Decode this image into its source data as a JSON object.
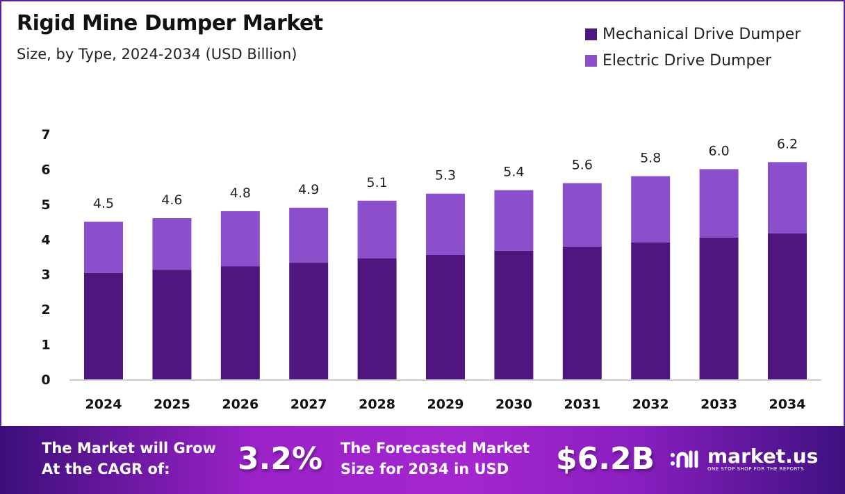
{
  "header": {
    "title": "Rigid Mine Dumper Market",
    "subtitle": "Size, by Type, 2024-2034 (USD Billion)"
  },
  "chart_data": {
    "type": "bar",
    "stacked": true,
    "categories": [
      "2024",
      "2025",
      "2026",
      "2027",
      "2028",
      "2029",
      "2030",
      "2031",
      "2032",
      "2033",
      "2034"
    ],
    "series": [
      {
        "name": "Mechanical Drive Dumper",
        "color": "#4f1680",
        "values": [
          3.04,
          3.13,
          3.23,
          3.33,
          3.45,
          3.55,
          3.67,
          3.79,
          3.91,
          4.05,
          4.17
        ]
      },
      {
        "name": "Electric Drive Dumper",
        "color": "#8b4fcc",
        "values": [
          1.46,
          1.47,
          1.57,
          1.57,
          1.65,
          1.75,
          1.73,
          1.81,
          1.89,
          1.95,
          2.03
        ]
      }
    ],
    "totals": [
      "4.5",
      "4.6",
      "4.8",
      "4.9",
      "5.1",
      "5.3",
      "5.4",
      "5.6",
      "5.8",
      "6.0",
      "6.2"
    ],
    "yticks": [
      "0",
      "1",
      "2",
      "3",
      "4",
      "5",
      "6",
      "7"
    ],
    "ylim": [
      0,
      7
    ],
    "grid": false,
    "legend_position": "top-right"
  },
  "footer": {
    "cagr_label_1": "The Market will Grow",
    "cagr_label_2": "At the CAGR of:",
    "cagr_value": "3.2%",
    "forecast_label_1": "The Forecasted Market",
    "forecast_label_2": "Size for 2034 in USD",
    "forecast_value": "$6.2B",
    "logo_text": "market.us",
    "logo_tagline": "ONE STOP SHOP FOR THE REPORTS"
  }
}
